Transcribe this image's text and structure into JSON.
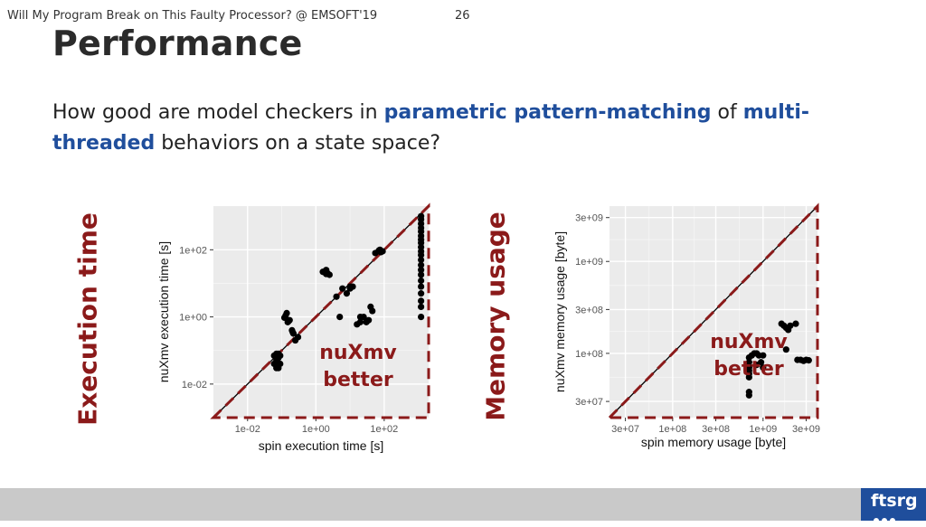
{
  "slide": {
    "title": "Performance",
    "subtitle_parts": [
      {
        "text": "How good are model checkers in ",
        "hl": false
      },
      {
        "text": "parametric pattern-matching",
        "hl": true
      },
      {
        "text": " of ",
        "hl": false
      },
      {
        "text": "multi-threaded",
        "hl": true
      },
      {
        "text": " behaviors on a state space?",
        "hl": false
      }
    ],
    "left_label": "Execution time",
    "right_label": "Memory usage",
    "footer": "Will My Program Break on This Faulty Processor? @ EMSOFT'19",
    "page": "26",
    "logo": "ftsrg",
    "accent": "#1f4e9c",
    "dark_red": "#8b1a1a"
  },
  "chart_data": [
    {
      "type": "scatter",
      "xlabel": "spin execution time [s]",
      "ylabel": "nuXmv execution time [s]",
      "log": true,
      "xlim": [
        0.001,
        2000
      ],
      "ylim": [
        0.001,
        2000
      ],
      "ticks": [
        0.01,
        1,
        100
      ],
      "tick_labels": [
        "1e-02",
        "1e+00",
        "1e+02"
      ],
      "grid": true,
      "annotation": [
        "nuXmv",
        "better"
      ],
      "points": [
        [
          0.07,
          0.06
        ],
        [
          0.07,
          0.04
        ],
        [
          0.07,
          0.08
        ],
        [
          0.07,
          0.05
        ],
        [
          0.07,
          0.03
        ],
        [
          0.08,
          0.03
        ],
        [
          0.08,
          0.06
        ],
        [
          0.08,
          0.04
        ],
        [
          0.09,
          0.04
        ],
        [
          0.09,
          0.07
        ],
        [
          0.07,
          0.07
        ],
        [
          0.08,
          0.08
        ],
        [
          0.06,
          0.07
        ],
        [
          0.06,
          0.04
        ],
        [
          0.15,
          0.7
        ],
        [
          0.13,
          1.1
        ],
        [
          0.16,
          0.75
        ],
        [
          0.14,
          1.3
        ],
        [
          0.17,
          0.8
        ],
        [
          0.12,
          0.95
        ],
        [
          0.2,
          0.4
        ],
        [
          0.21,
          0.35
        ],
        [
          0.22,
          0.32
        ],
        [
          0.25,
          0.2
        ],
        [
          0.3,
          0.25
        ],
        [
          1.6,
          22
        ],
        [
          2,
          25
        ],
        [
          2.2,
          20
        ],
        [
          2.5,
          18
        ],
        [
          2,
          19
        ],
        [
          4,
          4
        ],
        [
          6,
          7
        ],
        [
          8,
          5
        ],
        [
          10,
          8
        ],
        [
          12,
          8
        ],
        [
          10,
          7
        ],
        [
          5,
          1
        ],
        [
          16,
          0.6
        ],
        [
          20,
          1
        ],
        [
          25,
          1
        ],
        [
          30,
          0.7
        ],
        [
          20,
          0.7
        ],
        [
          35,
          0.8
        ],
        [
          40,
          2
        ],
        [
          45,
          1.5
        ],
        [
          55,
          80
        ],
        [
          70,
          95
        ],
        [
          80,
          85
        ],
        [
          90,
          90
        ],
        [
          75,
          100
        ]
      ],
      "column_x": 1200,
      "column_y": [
        1,
        2,
        3,
        5,
        8,
        12,
        18,
        25,
        35,
        50,
        70,
        90,
        120,
        160,
        200,
        260,
        350,
        450,
        600,
        800,
        1000
      ]
    },
    {
      "type": "scatter",
      "xlabel": "spin memory usage [byte]",
      "ylabel": "nuXmv memory usage [byte]",
      "log": true,
      "xlim": [
        20000000,
        4000000000
      ],
      "ylim": [
        20000000,
        4000000000
      ],
      "ticks": [
        30000000,
        100000000,
        300000000,
        1000000000,
        3000000000
      ],
      "tick_labels": [
        "3e+07",
        "1e+08",
        "3e+08",
        "1e+09",
        "3e+09"
      ],
      "grid": true,
      "annotation": [
        "nuXmv",
        "better"
      ],
      "points": [
        [
          700000000,
          35000000
        ],
        [
          700000000,
          38000000
        ],
        [
          700000000,
          55000000
        ],
        [
          700000000,
          60000000
        ],
        [
          700000000,
          65000000
        ],
        [
          700000000,
          70000000
        ],
        [
          700000000,
          80000000
        ],
        [
          700000000,
          90000000
        ],
        [
          750000000,
          95000000
        ],
        [
          800000000,
          100000000
        ],
        [
          850000000,
          100000000
        ],
        [
          900000000,
          95000000
        ],
        [
          1000000000,
          95000000
        ],
        [
          950000000,
          80000000
        ],
        [
          850000000,
          75000000
        ],
        [
          1000000000,
          70000000
        ],
        [
          1600000000,
          210000000
        ],
        [
          1700000000,
          200000000
        ],
        [
          1800000000,
          190000000
        ],
        [
          2000000000,
          200000000
        ],
        [
          2300000000,
          210000000
        ],
        [
          1900000000,
          180000000
        ],
        [
          1800000000,
          110000000
        ],
        [
          2400000000,
          85000000
        ],
        [
          2600000000,
          85000000
        ],
        [
          2800000000,
          83000000
        ],
        [
          3000000000,
          85000000
        ],
        [
          3200000000,
          84000000
        ]
      ]
    }
  ]
}
